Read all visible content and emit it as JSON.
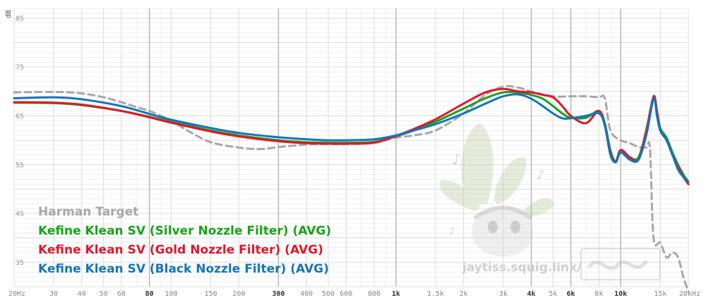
{
  "chart_data": {
    "type": "line",
    "title": "",
    "ylabel": "dB",
    "xlabel": "",
    "xscale": "log",
    "xlim": [
      20,
      20000
    ],
    "ylim": [
      30,
      87
    ],
    "y_ticks": [
      85,
      75,
      65,
      55,
      45,
      35
    ],
    "x_ticks": [
      {
        "value": 20,
        "label": "20Hz",
        "bold": false
      },
      {
        "value": 30,
        "label": "30",
        "bold": false
      },
      {
        "value": 40,
        "label": "40",
        "bold": false
      },
      {
        "value": 50,
        "label": "50",
        "bold": false
      },
      {
        "value": 60,
        "label": "60",
        "bold": false
      },
      {
        "value": 80,
        "label": "80",
        "bold": true
      },
      {
        "value": 100,
        "label": "100",
        "bold": false
      },
      {
        "value": 150,
        "label": "150",
        "bold": false
      },
      {
        "value": 200,
        "label": "200",
        "bold": false
      },
      {
        "value": 300,
        "label": "300",
        "bold": true
      },
      {
        "value": 400,
        "label": "400",
        "bold": false
      },
      {
        "value": 500,
        "label": "500",
        "bold": false
      },
      {
        "value": 600,
        "label": "600",
        "bold": false
      },
      {
        "value": 800,
        "label": "800",
        "bold": false
      },
      {
        "value": 1000,
        "label": "1k",
        "bold": true
      },
      {
        "value": 1500,
        "label": "1.5k",
        "bold": false
      },
      {
        "value": 2000,
        "label": "2k",
        "bold": false
      },
      {
        "value": 3000,
        "label": "3k",
        "bold": false
      },
      {
        "value": 4000,
        "label": "4k",
        "bold": true
      },
      {
        "value": 5000,
        "label": "5k",
        "bold": false
      },
      {
        "value": 6000,
        "label": "6k",
        "bold": true
      },
      {
        "value": 8000,
        "label": "8k",
        "bold": false
      },
      {
        "value": 10000,
        "label": "10k",
        "bold": true
      },
      {
        "value": 15000,
        "label": "15k",
        "bold": false
      },
      {
        "value": 20000,
        "label": "20kHz",
        "bold": false
      }
    ],
    "series": [
      {
        "name": "Harman Target",
        "color": "#a9a6aa",
        "dashed": true,
        "x": [
          20,
          30,
          40,
          50,
          60,
          70,
          80,
          100,
          120,
          150,
          200,
          250,
          300,
          400,
          500,
          600,
          800,
          1000,
          1200,
          1500,
          2000,
          2500,
          3000,
          3500,
          4000,
          5000,
          6000,
          7000,
          8000,
          8500,
          9000,
          10000,
          11000,
          12000,
          13000,
          13500,
          14000,
          15000,
          16000,
          17000,
          18000,
          19000,
          20000
        ],
        "y": [
          69.8,
          69.9,
          69.6,
          68.8,
          67.8,
          66.8,
          66.0,
          64.0,
          61.8,
          59.6,
          58.5,
          58.2,
          58.6,
          59.1,
          59.2,
          59.2,
          59.5,
          60.5,
          61.0,
          62.0,
          65.5,
          69.3,
          71.0,
          70.8,
          70.0,
          69.0,
          69.0,
          69.0,
          68.8,
          68.6,
          62.0,
          60.0,
          59.4,
          58.6,
          58.5,
          58.2,
          40.0,
          39.0,
          36.0,
          37.0,
          36.0,
          32.0,
          29.0
        ]
      },
      {
        "name": "Kefine Klean SV (Silver Nozzle Filter) (AVG)",
        "color": "#16a417",
        "dashed": false,
        "x": [
          20,
          30,
          40,
          60,
          80,
          100,
          150,
          200,
          300,
          400,
          500,
          600,
          800,
          1000,
          1200,
          1500,
          2000,
          2500,
          3000,
          3500,
          4000,
          4500,
          5000,
          5500,
          6000,
          7000,
          8000,
          8500,
          9000,
          9500,
          10000,
          11000,
          12000,
          13000,
          14000,
          14500,
          15000,
          16000,
          17000,
          18000,
          19000,
          20000
        ],
        "y": [
          67.7,
          67.6,
          67.2,
          66.0,
          64.8,
          63.8,
          62.0,
          61.0,
          60.0,
          59.6,
          59.5,
          59.5,
          59.7,
          60.8,
          62.0,
          63.8,
          66.5,
          68.6,
          69.8,
          69.8,
          69.3,
          68.5,
          67.0,
          65.5,
          64.6,
          64.6,
          66.0,
          63.5,
          58.0,
          55.7,
          58.0,
          56.5,
          56.5,
          62.0,
          69.0,
          66.0,
          62.5,
          60.5,
          57.5,
          55.0,
          53.0,
          51.5
        ]
      },
      {
        "name": "Kefine Klean SV (Gold Nozzle Filter) (AVG)",
        "color": "#e4152a",
        "dashed": false,
        "x": [
          20,
          30,
          40,
          60,
          80,
          100,
          150,
          200,
          300,
          400,
          500,
          600,
          800,
          1000,
          1200,
          1500,
          2000,
          2500,
          3000,
          3500,
          4000,
          4500,
          5000,
          5500,
          6000,
          7000,
          8000,
          8500,
          9000,
          9500,
          10000,
          11000,
          12000,
          13000,
          14000,
          14500,
          15000,
          16000,
          17000,
          18000,
          19000,
          20000
        ],
        "y": [
          67.8,
          67.7,
          67.3,
          66.0,
          64.7,
          63.6,
          61.8,
          60.8,
          59.8,
          59.4,
          59.3,
          59.3,
          59.5,
          60.9,
          62.3,
          64.3,
          67.5,
          69.8,
          70.5,
          70.0,
          69.8,
          69.3,
          68.8,
          67.0,
          65.0,
          63.5,
          66.0,
          63.0,
          57.5,
          55.5,
          58.0,
          56.5,
          56.0,
          62.0,
          68.8,
          66.0,
          62.0,
          60.0,
          57.0,
          54.5,
          52.5,
          51.0
        ]
      },
      {
        "name": "Kefine Klean SV (Black Nozzle Filter) (AVG)",
        "color": "#1374be",
        "dashed": false,
        "x": [
          20,
          30,
          40,
          60,
          80,
          100,
          150,
          200,
          300,
          400,
          500,
          600,
          800,
          1000,
          1200,
          1500,
          2000,
          2500,
          3000,
          3500,
          4000,
          4500,
          5000,
          5500,
          6000,
          7000,
          8000,
          8500,
          9000,
          9500,
          10000,
          11000,
          12000,
          13000,
          14000,
          14500,
          15000,
          16000,
          17000,
          18000,
          19000,
          20000
        ],
        "y": [
          68.6,
          68.8,
          68.4,
          67.0,
          65.4,
          64.2,
          62.5,
          61.5,
          60.6,
          60.2,
          60.0,
          60.0,
          60.2,
          61.0,
          62.0,
          63.3,
          65.5,
          67.5,
          69.0,
          69.4,
          68.5,
          67.0,
          65.5,
          64.5,
          64.5,
          65.0,
          65.5,
          63.0,
          57.0,
          55.5,
          57.5,
          56.0,
          56.0,
          61.0,
          68.5,
          65.0,
          62.0,
          60.0,
          57.0,
          54.0,
          52.5,
          51.5
        ]
      }
    ],
    "legend_position": "bottom-left",
    "watermark_text": "jaytiss.squig.link/"
  }
}
